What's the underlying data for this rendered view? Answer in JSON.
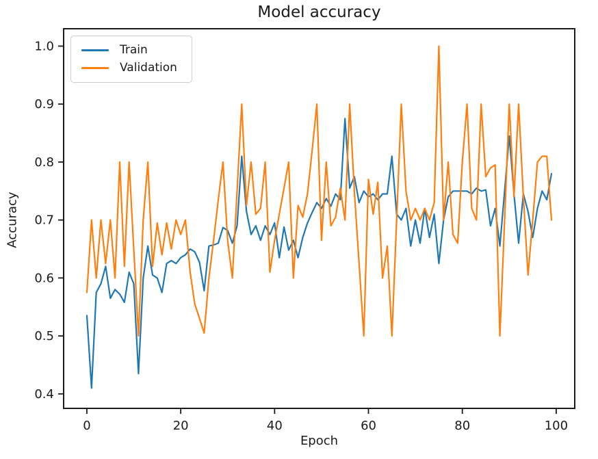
{
  "chart_data": {
    "type": "line",
    "title": "Model accuracy",
    "xlabel": "Epoch",
    "ylabel": "Accuracy",
    "grid": false,
    "x_ticks": [
      0,
      20,
      40,
      60,
      80,
      100
    ],
    "y_ticks": [
      0.4,
      0.5,
      0.6,
      0.7,
      0.8,
      0.9,
      1.0
    ],
    "xlim": [
      -4.95,
      103.95
    ],
    "ylim": [
      0.375,
      1.03
    ],
    "legend": {
      "position": "upper left",
      "entries": [
        {
          "label": "Train",
          "color": "#1f77b4"
        },
        {
          "label": "Validation",
          "color": "#ff7f0e"
        }
      ]
    },
    "x": [
      0,
      1,
      2,
      3,
      4,
      5,
      6,
      7,
      8,
      9,
      10,
      11,
      12,
      13,
      14,
      15,
      16,
      17,
      18,
      19,
      20,
      21,
      22,
      23,
      24,
      25,
      26,
      27,
      28,
      29,
      30,
      31,
      32,
      33,
      34,
      35,
      36,
      37,
      38,
      39,
      40,
      41,
      42,
      43,
      44,
      45,
      46,
      47,
      48,
      49,
      50,
      51,
      52,
      53,
      54,
      55,
      56,
      57,
      58,
      59,
      60,
      61,
      62,
      63,
      64,
      65,
      66,
      67,
      68,
      69,
      70,
      71,
      72,
      73,
      74,
      75,
      76,
      77,
      78,
      79,
      80,
      81,
      82,
      83,
      84,
      85,
      86,
      87,
      88,
      89,
      90,
      91,
      92,
      93,
      94,
      95,
      96,
      97,
      98,
      99
    ],
    "series": [
      {
        "name": "Train",
        "color": "#1f77b4",
        "values": [
          0.535,
          0.41,
          0.575,
          0.59,
          0.62,
          0.565,
          0.58,
          0.572,
          0.558,
          0.61,
          0.59,
          0.435,
          0.6,
          0.655,
          0.605,
          0.6,
          0.575,
          0.625,
          0.63,
          0.625,
          0.635,
          0.64,
          0.65,
          0.645,
          0.627,
          0.578,
          0.655,
          0.657,
          0.66,
          0.687,
          0.682,
          0.66,
          0.69,
          0.81,
          0.715,
          0.675,
          0.69,
          0.665,
          0.69,
          0.675,
          0.695,
          0.635,
          0.688,
          0.648,
          0.665,
          0.635,
          0.67,
          0.695,
          0.713,
          0.73,
          0.72,
          0.737,
          0.724,
          0.745,
          0.735,
          0.875,
          0.755,
          0.775,
          0.73,
          0.75,
          0.74,
          0.745,
          0.735,
          0.745,
          0.745,
          0.81,
          0.71,
          0.7,
          0.72,
          0.655,
          0.7,
          0.66,
          0.72,
          0.67,
          0.71,
          0.625,
          0.7,
          0.74,
          0.75,
          0.75,
          0.75,
          0.75,
          0.745,
          0.755,
          0.75,
          0.752,
          0.69,
          0.72,
          0.655,
          0.75,
          0.845,
          0.745,
          0.66,
          0.745,
          0.715,
          0.67,
          0.72,
          0.75,
          0.735,
          0.78
        ]
      },
      {
        "name": "Validation",
        "color": "#ff7f0e",
        "values": [
          0.575,
          0.7,
          0.6,
          0.7,
          0.625,
          0.7,
          0.6,
          0.8,
          0.62,
          0.8,
          0.65,
          0.5,
          0.7,
          0.8,
          0.62,
          0.695,
          0.64,
          0.695,
          0.65,
          0.7,
          0.675,
          0.7,
          0.61,
          0.555,
          0.53,
          0.505,
          0.6,
          0.665,
          0.735,
          0.8,
          0.665,
          0.6,
          0.75,
          0.9,
          0.725,
          0.8,
          0.71,
          0.72,
          0.8,
          0.61,
          0.665,
          0.71,
          0.755,
          0.8,
          0.6,
          0.725,
          0.705,
          0.745,
          0.82,
          0.9,
          0.665,
          0.8,
          0.69,
          0.705,
          0.755,
          0.7,
          0.9,
          0.75,
          0.625,
          0.5,
          0.77,
          0.71,
          0.765,
          0.6,
          0.655,
          0.5,
          0.7,
          0.9,
          0.75,
          0.7,
          0.72,
          0.7,
          0.72,
          0.7,
          0.73,
          1.0,
          0.7,
          0.8,
          0.675,
          0.66,
          0.8,
          0.9,
          0.72,
          0.7,
          0.9,
          0.775,
          0.79,
          0.795,
          0.5,
          0.7,
          0.9,
          0.74,
          0.9,
          0.74,
          0.605,
          0.7,
          0.8,
          0.81,
          0.81,
          0.7
        ]
      }
    ]
  },
  "style": {
    "spine_color": "#1a1a1a",
    "tick_label_color": "#1a1a1a",
    "background": "#ffffff"
  }
}
